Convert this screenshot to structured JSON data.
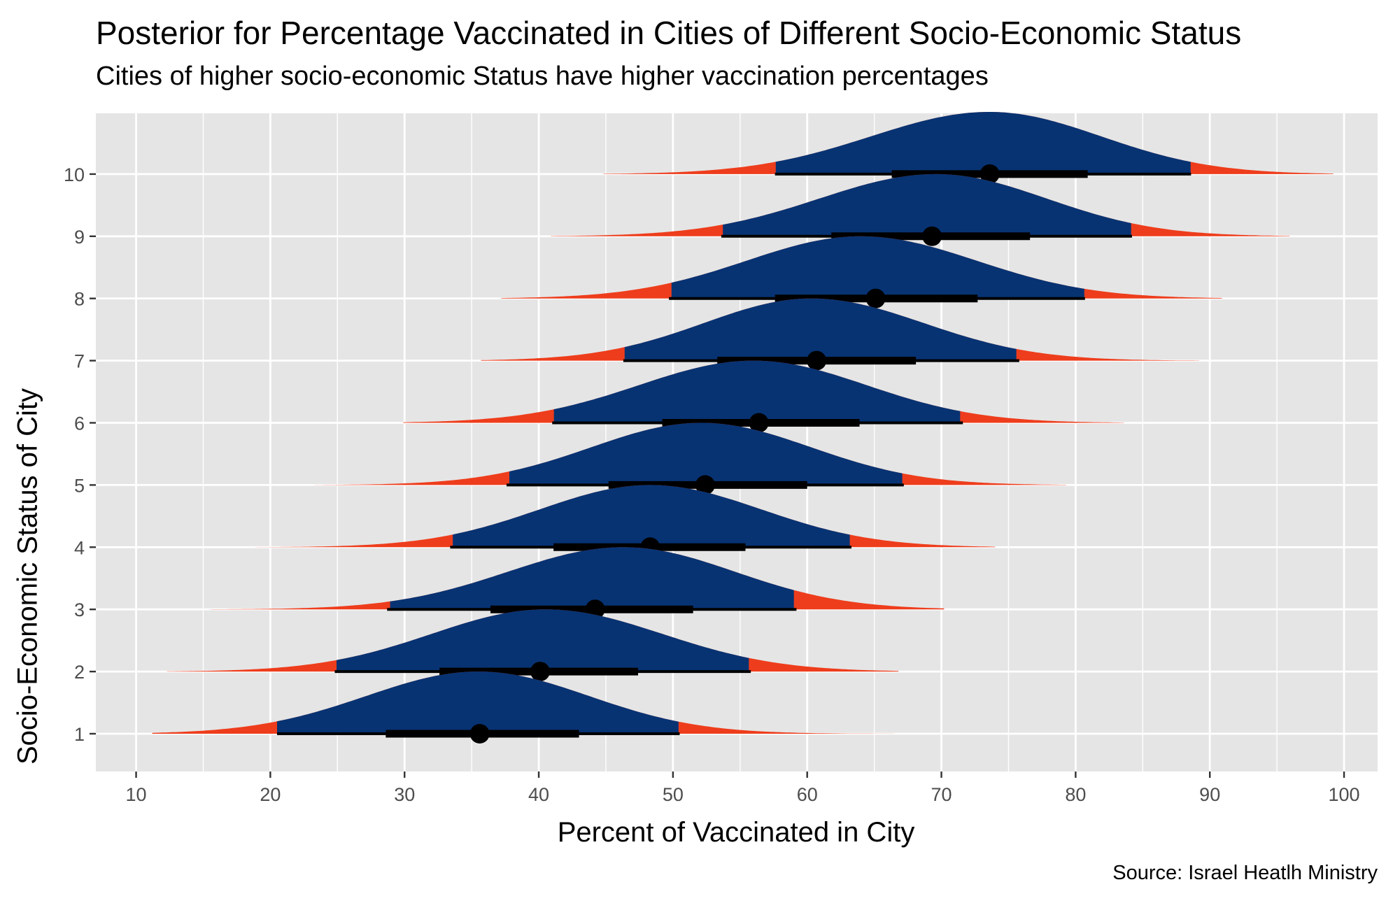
{
  "chart_data": {
    "type": "ridgeline",
    "title": "Posterior for Percentage Vaccinated in Cities of Different Socio-Economic Status",
    "subtitle": "Cities of higher socio-economic Status have higher vaccination percentages",
    "caption": "Source: Israel Heatlh Ministry",
    "xlabel": "Percent of Vaccinated in City",
    "ylabel": "Socio-Economic Status of City",
    "xlim": [
      7,
      102.5
    ],
    "x_ticks": [
      10,
      20,
      30,
      40,
      50,
      60,
      70,
      80,
      90,
      100
    ],
    "y_categories": [
      "1",
      "2",
      "3",
      "4",
      "5",
      "6",
      "7",
      "8",
      "9",
      "10"
    ],
    "grid": true,
    "colors": {
      "density_inner": "#073373",
      "density_tails": "#ee3d1c",
      "panel": "#e5e5e5",
      "grid": "#ffffff",
      "point": "#000000"
    },
    "series": [
      {
        "name": "1",
        "median": 35.6,
        "interval_66": [
          28.6,
          43.0
        ],
        "interval_95": [
          20.5,
          50.5
        ],
        "range": [
          11.2,
          66.5
        ],
        "mode": 35.5
      },
      {
        "name": "2",
        "median": 40.1,
        "interval_66": [
          32.6,
          47.4
        ],
        "interval_95": [
          24.8,
          55.8
        ],
        "range": [
          12.3,
          66.8
        ],
        "mode": 40.5
      },
      {
        "name": "3",
        "median": 44.2,
        "interval_66": [
          36.4,
          51.5
        ],
        "interval_95": [
          28.7,
          59.2
        ],
        "range": [
          15.5,
          70.2
        ],
        "mode": 46.3
      },
      {
        "name": "4",
        "median": 48.3,
        "interval_66": [
          41.1,
          55.4
        ],
        "interval_95": [
          33.4,
          63.3
        ],
        "range": [
          15.9,
          74.0
        ],
        "mode": 48.3
      },
      {
        "name": "5",
        "median": 52.4,
        "interval_66": [
          45.2,
          60.0
        ],
        "interval_95": [
          37.6,
          67.2
        ],
        "range": [
          23.3,
          79.3
        ],
        "mode": 52.1
      },
      {
        "name": "6",
        "median": 56.4,
        "interval_66": [
          49.2,
          63.9
        ],
        "interval_95": [
          41.0,
          71.6
        ],
        "range": [
          29.9,
          83.6
        ],
        "mode": 56.0
      },
      {
        "name": "7",
        "median": 60.7,
        "interval_66": [
          53.3,
          68.1
        ],
        "interval_95": [
          46.3,
          75.8
        ],
        "range": [
          35.7,
          89.2
        ],
        "mode": 60.3
      },
      {
        "name": "8",
        "median": 65.1,
        "interval_66": [
          57.6,
          72.7
        ],
        "interval_95": [
          49.7,
          80.7
        ],
        "range": [
          37.2,
          90.9
        ],
        "mode": 64.0
      },
      {
        "name": "9",
        "median": 69.3,
        "interval_66": [
          61.8,
          76.6
        ],
        "interval_95": [
          53.6,
          84.2
        ],
        "range": [
          40.9,
          96.2
        ],
        "mode": 69.6
      },
      {
        "name": "10",
        "median": 73.6,
        "interval_66": [
          66.3,
          80.9
        ],
        "interval_95": [
          57.6,
          88.6
        ],
        "range": [
          44.8,
          99.2
        ],
        "mode": 73.6
      }
    ]
  }
}
